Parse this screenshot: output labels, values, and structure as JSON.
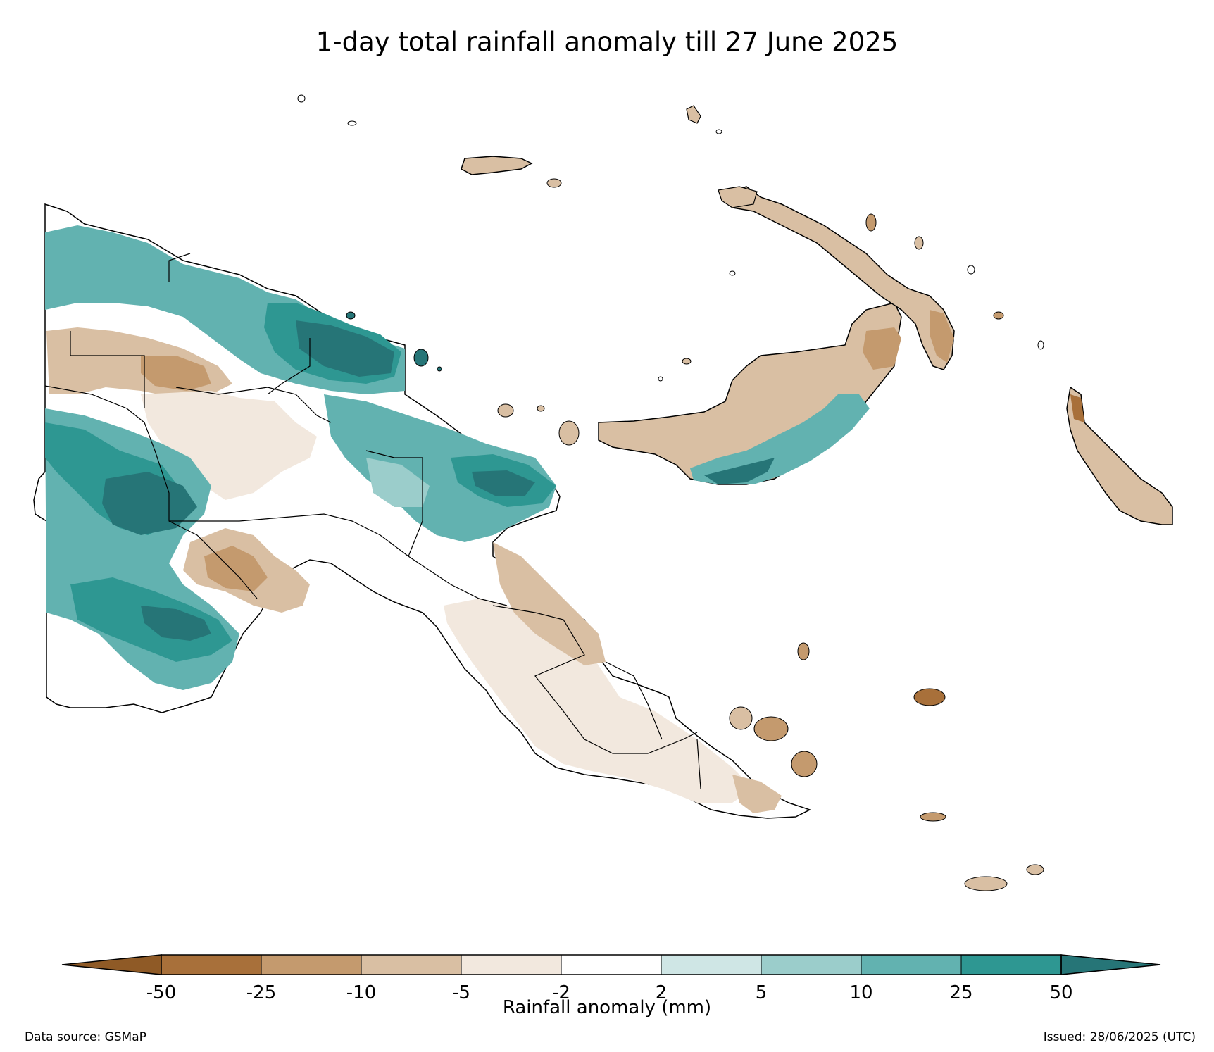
{
  "title": "1-day total rainfall anomaly till 27 June 2025",
  "colorbar": {
    "label": "Rainfall anomaly (mm)",
    "ticks": [
      "-50",
      "-25",
      "-10",
      "-5",
      "-2",
      "2",
      "5",
      "10",
      "25",
      "50"
    ],
    "colors": [
      "#8f5a26",
      "#a8703a",
      "#c49a6e",
      "#d9bfa3",
      "#f2e8de",
      "#ffffff",
      "#cfe6e5",
      "#9bcdcb",
      "#62b2b0",
      "#2e9792",
      "#267577"
    ]
  },
  "legend_bins": [
    {
      "range": "< -50",
      "color": "#8f5a26"
    },
    {
      "range": "-50 to -25",
      "color": "#a8703a"
    },
    {
      "range": "-25 to -10",
      "color": "#c49a6e"
    },
    {
      "range": "-10 to -5",
      "color": "#d9bfa3"
    },
    {
      "range": "-5 to -2",
      "color": "#f2e8de"
    },
    {
      "range": "-2 to 2",
      "color": "#ffffff"
    },
    {
      "range": "2 to 5",
      "color": "#cfe6e5"
    },
    {
      "range": "5 to 10",
      "color": "#9bcdcb"
    },
    {
      "range": "10 to 25",
      "color": "#62b2b0"
    },
    {
      "range": "25 to 50",
      "color": "#2e9792"
    },
    {
      "range": "> 50",
      "color": "#267577"
    }
  ],
  "footer": {
    "data_source": "Data source: GSMaP",
    "issued": "Issued: 28/06/2025 (UTC)"
  }
}
